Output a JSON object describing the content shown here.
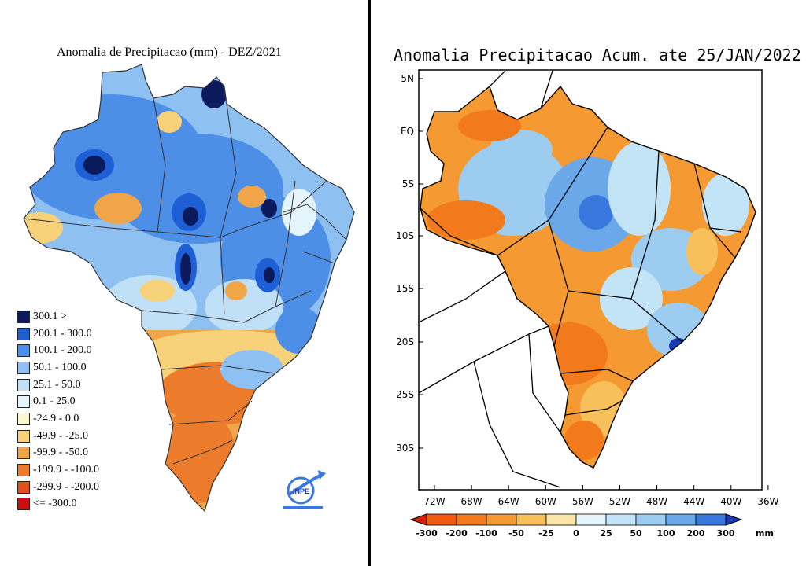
{
  "left_panel": {
    "title": "Anomalia de Precipitacao (mm) - DEZ/2021",
    "legend": [
      {
        "label": "300.1 >",
        "color": "#0a1a5c"
      },
      {
        "label": "200.1 - 300.0",
        "color": "#1f5fd6"
      },
      {
        "label": "100.1 - 200.0",
        "color": "#4d8fe6"
      },
      {
        "label": "50.1 - 100.0",
        "color": "#8fc0f2"
      },
      {
        "label": "25.1 - 50.0",
        "color": "#bfe0f7"
      },
      {
        "label": "0.1 - 25.0",
        "color": "#e4f4fb"
      },
      {
        "label": "-24.9 - 0.0",
        "color": "#fcf6cf"
      },
      {
        "label": "-49.9 - -25.0",
        "color": "#f7d27a"
      },
      {
        "label": "-99.9 - -50.0",
        "color": "#f0a548"
      },
      {
        "label": "-199.9 - -100.0",
        "color": "#ec7c2c"
      },
      {
        "label": "-299.9 - -200.0",
        "color": "#e0501c"
      },
      {
        "label": "<= -300.0",
        "color": "#c81010"
      }
    ],
    "logo": {
      "text": "INPE",
      "icon": "inpe-logo-icon"
    }
  },
  "right_panel": {
    "title": "Anomalia Precipitacao Acum. ate 25/JAN/2022",
    "lat_labels": [
      "5N",
      "EQ",
      "5S",
      "10S",
      "15S",
      "20S",
      "25S",
      "30S"
    ],
    "lon_labels": [
      "72W",
      "68W",
      "64W",
      "60W",
      "56W",
      "52W",
      "48W",
      "44W",
      "40W",
      "36W"
    ],
    "colorbar": {
      "labels": [
        "-300",
        "-200",
        "-100",
        "-50",
        "-25",
        "0",
        "25",
        "50",
        "100",
        "200",
        "300"
      ],
      "unit": "mm",
      "colors": [
        "#d81f08",
        "#ef5a10",
        "#f27a1c",
        "#f59a32",
        "#f8c05a",
        "#fbe6a8",
        "#e6f4fb",
        "#c3e4f6",
        "#9ccdf1",
        "#6aa8ea",
        "#3a78de",
        "#1838b8"
      ]
    }
  },
  "colors": {
    "divider": "#000000",
    "wet": "#4d8fe6",
    "dry": "#ec7c2c"
  }
}
